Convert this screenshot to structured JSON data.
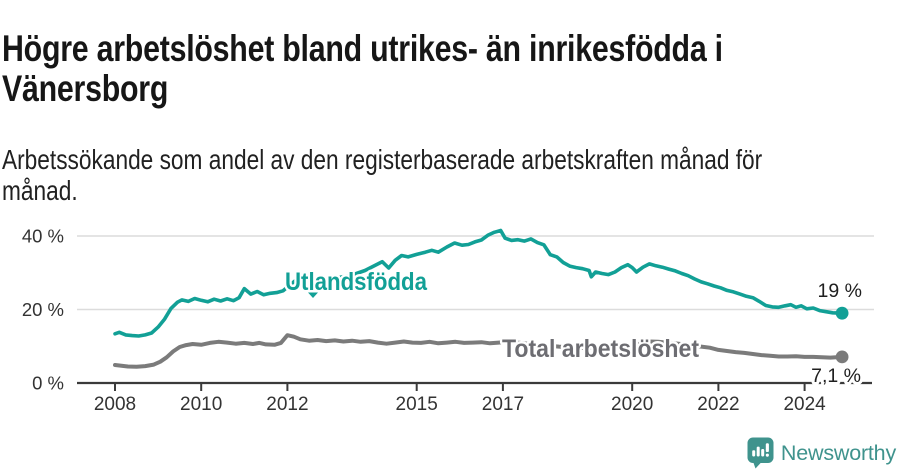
{
  "header": {
    "title": "Högre arbetslöshet bland utrikes- än inrikesfödda i\nVänersborg",
    "subtitle": "Arbetssökande som andel av den registerbaserade arbetskraften månad för\nmånad."
  },
  "chart_data": {
    "type": "line",
    "unit": "%",
    "title": "Högre arbetslöshet bland utrikes- än inrikesfödda i Vänersborg",
    "subtitle": "Arbetssökande som andel av den registerbaserade arbetskraften månad för månad.",
    "xlabel": "",
    "ylabel": "",
    "xlim": [
      2007.9,
      2025.6
    ],
    "ylim": [
      0,
      44
    ],
    "grid": "horizontal",
    "legend_position": "inline-series-labels",
    "xticks": [
      {
        "value": 2008,
        "label": "2008"
      },
      {
        "value": 2010,
        "label": "2010"
      },
      {
        "value": 2012,
        "label": "2012"
      },
      {
        "value": 2015,
        "label": "2015"
      },
      {
        "value": 2017,
        "label": "2017"
      },
      {
        "value": 2020,
        "label": "2020"
      },
      {
        "value": 2022,
        "label": "2022"
      },
      {
        "value": 2024,
        "label": "2024"
      }
    ],
    "yticks": [
      {
        "value": 0,
        "label": "0 %"
      },
      {
        "value": 20,
        "label": "20 %"
      },
      {
        "value": 40,
        "label": "40 %"
      }
    ],
    "series": [
      {
        "name": "Utlandsfödda",
        "color": "#12a096",
        "label_color": "#12a096",
        "line_width": 3.6,
        "end_label": "19 %",
        "last_value": 19,
        "points": [
          [
            2008.0,
            13.4
          ],
          [
            2008.1,
            13.8
          ],
          [
            2008.25,
            13.1
          ],
          [
            2008.4,
            12.9
          ],
          [
            2008.55,
            12.8
          ],
          [
            2008.7,
            13.1
          ],
          [
            2008.85,
            13.6
          ],
          [
            2009.0,
            15.2
          ],
          [
            2009.15,
            17.4
          ],
          [
            2009.3,
            20.3
          ],
          [
            2009.45,
            22.0
          ],
          [
            2009.55,
            22.6
          ],
          [
            2009.7,
            22.2
          ],
          [
            2009.85,
            23.0
          ],
          [
            2010.0,
            22.5
          ],
          [
            2010.15,
            22.1
          ],
          [
            2010.3,
            22.8
          ],
          [
            2010.45,
            22.3
          ],
          [
            2010.6,
            22.9
          ],
          [
            2010.75,
            22.4
          ],
          [
            2010.88,
            23.2
          ],
          [
            2011.0,
            25.7
          ],
          [
            2011.15,
            24.2
          ],
          [
            2011.3,
            24.9
          ],
          [
            2011.45,
            24.0
          ],
          [
            2011.6,
            24.4
          ],
          [
            2011.75,
            24.6
          ],
          [
            2011.9,
            25.1
          ],
          [
            2012.05,
            26.6
          ],
          [
            2012.2,
            28.0
          ],
          [
            2012.35,
            28.5
          ],
          [
            2012.5,
            27.8
          ],
          [
            2012.65,
            27.5
          ],
          [
            2012.8,
            27.8
          ],
          [
            2013.0,
            28.2
          ],
          [
            2013.2,
            28.7
          ],
          [
            2013.4,
            29.2
          ],
          [
            2013.6,
            29.8
          ],
          [
            2013.8,
            30.6
          ],
          [
            2014.0,
            31.8
          ],
          [
            2014.2,
            33.0
          ],
          [
            2014.35,
            31.3
          ],
          [
            2014.5,
            33.4
          ],
          [
            2014.65,
            34.7
          ],
          [
            2014.8,
            34.3
          ],
          [
            2015.0,
            35.0
          ],
          [
            2015.2,
            35.6
          ],
          [
            2015.35,
            36.1
          ],
          [
            2015.5,
            35.6
          ],
          [
            2015.7,
            37.0
          ],
          [
            2015.88,
            38.1
          ],
          [
            2016.05,
            37.5
          ],
          [
            2016.2,
            37.7
          ],
          [
            2016.35,
            38.4
          ],
          [
            2016.5,
            38.9
          ],
          [
            2016.65,
            40.2
          ],
          [
            2016.8,
            41.0
          ],
          [
            2016.95,
            41.5
          ],
          [
            2017.05,
            39.4
          ],
          [
            2017.2,
            38.8
          ],
          [
            2017.35,
            39.0
          ],
          [
            2017.5,
            38.6
          ],
          [
            2017.65,
            39.2
          ],
          [
            2017.8,
            38.2
          ],
          [
            2017.95,
            37.6
          ],
          [
            2018.1,
            34.9
          ],
          [
            2018.25,
            34.3
          ],
          [
            2018.4,
            32.8
          ],
          [
            2018.55,
            31.8
          ],
          [
            2018.7,
            31.4
          ],
          [
            2018.85,
            31.1
          ],
          [
            2019.0,
            30.6
          ],
          [
            2019.05,
            28.9
          ],
          [
            2019.15,
            30.2
          ],
          [
            2019.3,
            29.8
          ],
          [
            2019.45,
            29.5
          ],
          [
            2019.6,
            30.2
          ],
          [
            2019.75,
            31.4
          ],
          [
            2019.9,
            32.2
          ],
          [
            2020.0,
            31.4
          ],
          [
            2020.1,
            30.2
          ],
          [
            2020.25,
            31.5
          ],
          [
            2020.4,
            32.4
          ],
          [
            2020.55,
            31.9
          ],
          [
            2020.7,
            31.5
          ],
          [
            2020.85,
            31.0
          ],
          [
            2021.0,
            30.5
          ],
          [
            2021.15,
            29.8
          ],
          [
            2021.3,
            29.2
          ],
          [
            2021.45,
            28.3
          ],
          [
            2021.6,
            27.5
          ],
          [
            2021.75,
            27.0
          ],
          [
            2021.9,
            26.4
          ],
          [
            2022.05,
            25.9
          ],
          [
            2022.2,
            25.2
          ],
          [
            2022.35,
            24.8
          ],
          [
            2022.5,
            24.2
          ],
          [
            2022.65,
            23.6
          ],
          [
            2022.8,
            23.2
          ],
          [
            2022.95,
            22.2
          ],
          [
            2023.1,
            21.1
          ],
          [
            2023.25,
            20.7
          ],
          [
            2023.4,
            20.6
          ],
          [
            2023.55,
            21.0
          ],
          [
            2023.68,
            21.3
          ],
          [
            2023.8,
            20.6
          ],
          [
            2023.92,
            21.0
          ],
          [
            2024.05,
            20.2
          ],
          [
            2024.2,
            20.4
          ],
          [
            2024.35,
            19.7
          ],
          [
            2024.5,
            19.4
          ],
          [
            2024.65,
            19.1
          ],
          [
            2024.87,
            19.0
          ]
        ]
      },
      {
        "name": "Total arbetslöshet",
        "color": "#7b7b7b",
        "label_color": "#6d6d72",
        "line_width": 4,
        "end_label": "7,1 %",
        "last_value": 7.1,
        "points": [
          [
            2008.0,
            4.9
          ],
          [
            2008.15,
            4.7
          ],
          [
            2008.3,
            4.5
          ],
          [
            2008.5,
            4.4
          ],
          [
            2008.7,
            4.6
          ],
          [
            2008.9,
            5.0
          ],
          [
            2009.05,
            5.8
          ],
          [
            2009.2,
            7.0
          ],
          [
            2009.35,
            8.6
          ],
          [
            2009.5,
            9.8
          ],
          [
            2009.65,
            10.3
          ],
          [
            2009.8,
            10.6
          ],
          [
            2010.0,
            10.4
          ],
          [
            2010.2,
            10.9
          ],
          [
            2010.4,
            11.2
          ],
          [
            2010.6,
            11.0
          ],
          [
            2010.8,
            10.7
          ],
          [
            2011.0,
            10.9
          ],
          [
            2011.2,
            10.6
          ],
          [
            2011.35,
            10.9
          ],
          [
            2011.5,
            10.5
          ],
          [
            2011.7,
            10.4
          ],
          [
            2011.85,
            10.9
          ],
          [
            2012.0,
            13.0
          ],
          [
            2012.15,
            12.6
          ],
          [
            2012.3,
            11.9
          ],
          [
            2012.5,
            11.5
          ],
          [
            2012.7,
            11.7
          ],
          [
            2012.9,
            11.4
          ],
          [
            2013.1,
            11.6
          ],
          [
            2013.3,
            11.3
          ],
          [
            2013.5,
            11.5
          ],
          [
            2013.7,
            11.2
          ],
          [
            2013.9,
            11.4
          ],
          [
            2014.1,
            11.0
          ],
          [
            2014.3,
            10.7
          ],
          [
            2014.5,
            11.0
          ],
          [
            2014.7,
            11.3
          ],
          [
            2014.9,
            11.0
          ],
          [
            2015.1,
            10.9
          ],
          [
            2015.3,
            11.2
          ],
          [
            2015.5,
            10.8
          ],
          [
            2015.7,
            11.0
          ],
          [
            2015.9,
            11.2
          ],
          [
            2016.1,
            10.9
          ],
          [
            2016.3,
            11.0
          ],
          [
            2016.5,
            11.1
          ],
          [
            2016.7,
            10.8
          ],
          [
            2016.9,
            11.0
          ],
          [
            2017.1,
            11.2
          ],
          [
            2017.4,
            10.9
          ],
          [
            2017.7,
            10.5
          ],
          [
            2018.0,
            10.2
          ],
          [
            2018.3,
            9.9
          ],
          [
            2018.6,
            9.7
          ],
          [
            2018.9,
            9.6
          ],
          [
            2019.2,
            9.7
          ],
          [
            2019.5,
            9.8
          ],
          [
            2019.8,
            9.9
          ],
          [
            2020.0,
            10.1
          ],
          [
            2020.2,
            10.8
          ],
          [
            2020.4,
            11.3
          ],
          [
            2020.6,
            11.2
          ],
          [
            2020.8,
            11.0
          ],
          [
            2021.0,
            10.8
          ],
          [
            2021.2,
            10.5
          ],
          [
            2021.4,
            10.1
          ],
          [
            2021.6,
            9.9
          ],
          [
            2021.8,
            9.6
          ],
          [
            2022.0,
            9.0
          ],
          [
            2022.2,
            8.7
          ],
          [
            2022.4,
            8.4
          ],
          [
            2022.6,
            8.2
          ],
          [
            2022.8,
            7.9
          ],
          [
            2023.0,
            7.6
          ],
          [
            2023.2,
            7.4
          ],
          [
            2023.4,
            7.2
          ],
          [
            2023.6,
            7.2
          ],
          [
            2023.8,
            7.3
          ],
          [
            2024.0,
            7.1
          ],
          [
            2024.2,
            7.1
          ],
          [
            2024.4,
            7.0
          ],
          [
            2024.6,
            6.9
          ],
          [
            2024.87,
            7.1
          ]
        ]
      }
    ]
  },
  "footer": {
    "brand": "Newsworthy"
  }
}
